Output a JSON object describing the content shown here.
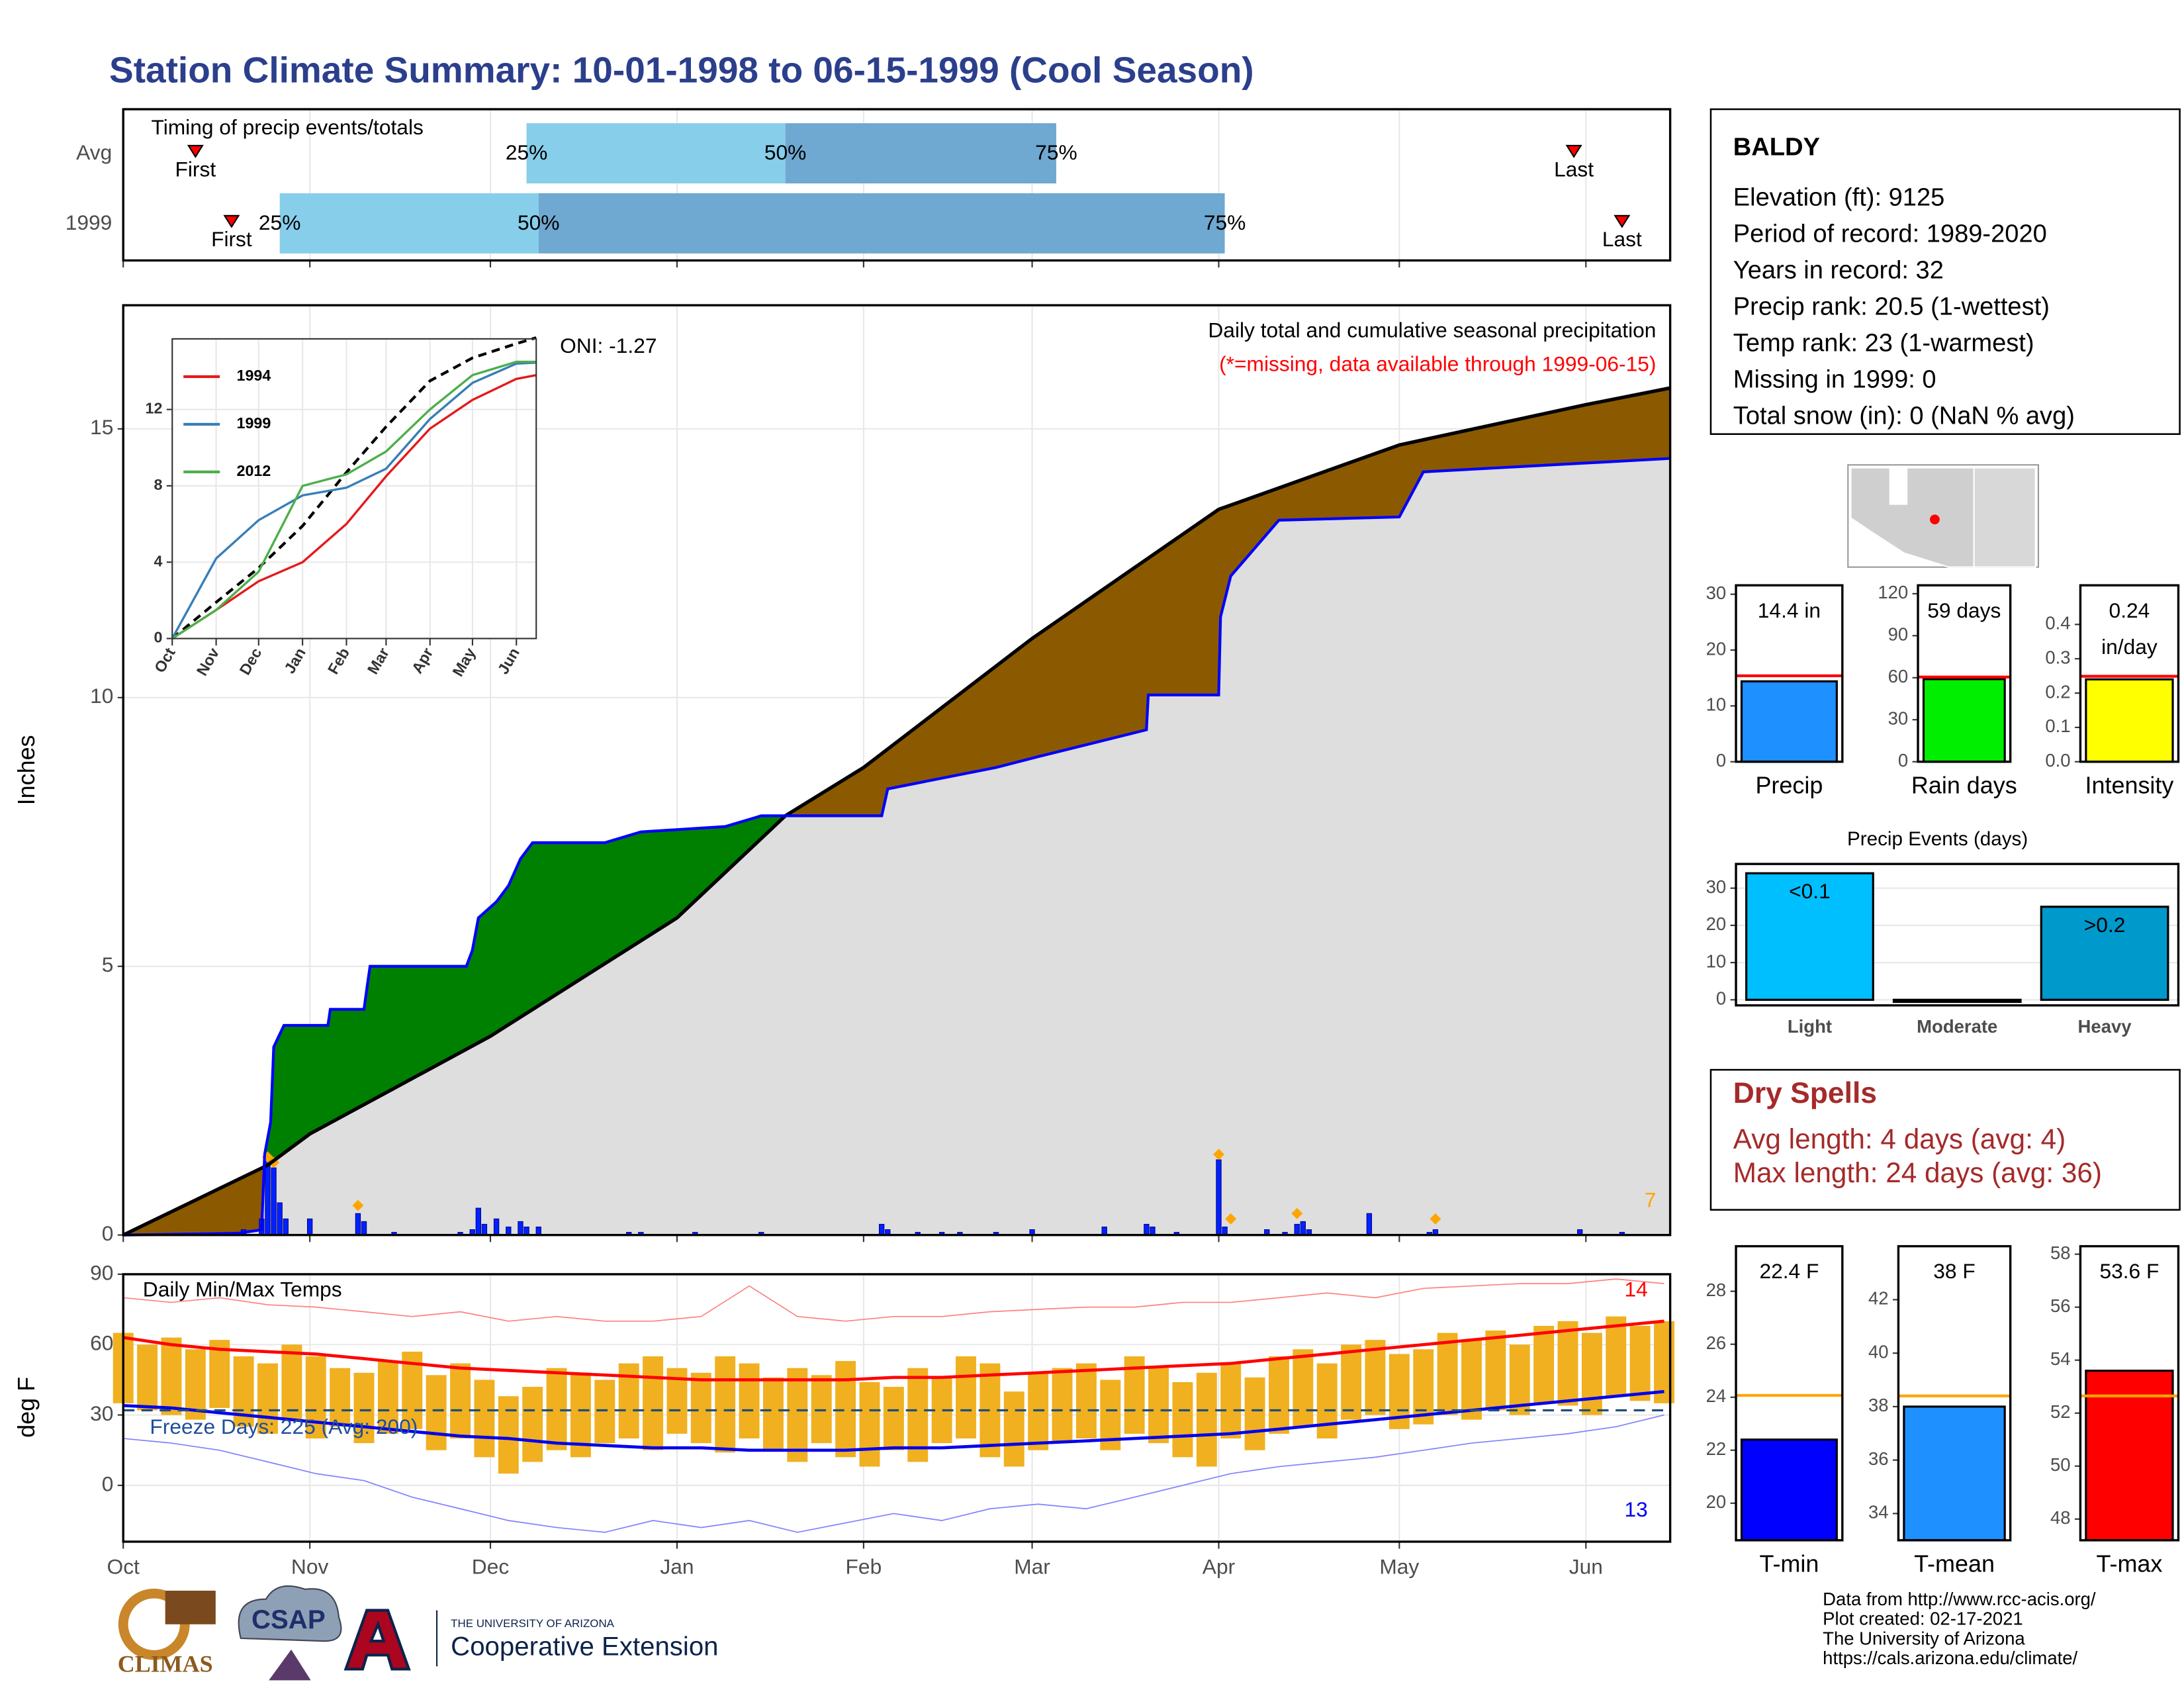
{
  "title": "Station Climate Summary: 10-01-1998 to 06-15-1999 (Cool Season)",
  "station": {
    "name": "BALDY",
    "lines": [
      "Elevation (ft): 9125",
      "Period of record: 1989-2020",
      "Years in record: 32",
      "Precip rank: 20.5 (1-wettest)",
      "Temp rank: 23 (1-warmest)",
      "Missing in 1999: 0",
      "Total snow (in): 0 (NaN % avg)"
    ]
  },
  "dry_spells": {
    "title": "Dry Spells",
    "lines": [
      "Avg length: 4 days (avg: 4)",
      "Max length: 24 days (avg: 36)"
    ]
  },
  "footer": [
    "Data from http://www.rcc-acis.org/",
    "Plot created: 02-17-2021",
    "The University of Arizona",
    "https://cals.arizona.edu/climate/"
  ],
  "logos": {
    "climas": "CLIMAS",
    "csap": "CSAP",
    "ua": "THE UNIVERSITY OF ARIZONA",
    "ce": "Cooperative Extension"
  },
  "chart_data": [
    {
      "type": "timing",
      "title": "Timing of precip events/totals",
      "xlim": [
        0,
        257
      ],
      "xticks": [
        0,
        31,
        61,
        92,
        123,
        151,
        182,
        212,
        243
      ],
      "grid": true,
      "marker_labels": [
        "First",
        "Last"
      ],
      "quantile_labels": [
        "25%",
        "50%",
        "75%"
      ],
      "colors": [
        "#87ceeb",
        "#6fa8d0"
      ],
      "marker_color": "#ff0000",
      "series": [
        {
          "name": "Avg",
          "first": 12,
          "q25": 67,
          "q50": 110,
          "q75": 155,
          "last": 241
        },
        {
          "name": "1999",
          "first": 18,
          "q25": 26,
          "q50": 69,
          "q75": 183,
          "last": 249
        }
      ]
    },
    {
      "type": "cumulative",
      "ylabel": "Inches",
      "xlim": [
        0,
        257
      ],
      "xticks": [
        0,
        31,
        61,
        92,
        123,
        151,
        182,
        212,
        243
      ],
      "ylim": [
        0,
        17.3
      ],
      "yticks": [
        0,
        5,
        10,
        15
      ],
      "grid": true,
      "annotations": {
        "title": "Daily total and cumulative seasonal precipitation",
        "note": "(*=missing, data available through 1999-06-15)",
        "oni": "ONI: -1.27",
        "count": 7
      },
      "above_color": "#008000",
      "below_color": "#8b5a00",
      "base_color": "#dedede",
      "avg_cumulative": {
        "color": "#000000",
        "x": [
          0,
          24,
          31,
          61,
          92,
          110,
          123,
          151,
          182,
          212,
          243,
          257
        ],
        "values": [
          0,
          1.3,
          1.88,
          3.7,
          5.9,
          7.8,
          8.7,
          11.1,
          13.5,
          14.7,
          15.45,
          15.76
        ]
      },
      "cumulative": {
        "color": "#0000ff",
        "x": [
          0,
          19,
          23,
          23.5,
          24.5,
          25,
          26.7,
          34,
          34.4,
          40,
          40.5,
          41,
          57,
          58,
          59,
          62,
          64,
          66,
          68,
          80,
          86,
          100,
          106,
          126,
          127,
          145,
          152,
          170,
          170.3,
          182,
          182.3,
          184,
          192,
          212,
          216,
          257
        ],
        "values": [
          0,
          0.03,
          0.1,
          1.5,
          2.1,
          3.5,
          3.9,
          3.9,
          4.2,
          4.2,
          4.6,
          5.0,
          5.0,
          5.3,
          5.9,
          6.2,
          6.5,
          7.0,
          7.3,
          7.3,
          7.5,
          7.6,
          7.8,
          7.8,
          8.3,
          8.7,
          8.9,
          9.4,
          10.05,
          10.05,
          11.5,
          12.26,
          13.3,
          13.36,
          14.2,
          14.45
        ]
      },
      "daily": {
        "color": "#0022ff",
        "x": [
          19,
          20,
          23,
          24,
          25,
          26,
          27,
          31,
          39,
          40,
          45,
          56,
          58,
          59,
          60,
          62,
          64,
          66,
          67,
          69,
          84,
          86,
          95,
          106,
          126,
          127,
          132,
          136,
          139,
          145,
          151,
          163,
          170,
          171,
          175,
          182,
          183,
          190,
          193,
          195,
          196,
          197,
          207,
          217,
          218,
          242,
          249
        ],
        "values": [
          0.05,
          0.1,
          0.3,
          1.4,
          1.25,
          0.6,
          0.3,
          0.3,
          0.4,
          0.25,
          0.05,
          0.05,
          0.1,
          0.5,
          0.2,
          0.3,
          0.15,
          0.25,
          0.15,
          0.15,
          0.05,
          0.05,
          0.05,
          0.05,
          0.2,
          0.1,
          0.05,
          0.05,
          0.05,
          0.05,
          0.1,
          0.15,
          0.2,
          0.15,
          0.05,
          1.4,
          0.15,
          0.1,
          0.05,
          0.2,
          0.25,
          0.1,
          0.4,
          0.05,
          0.1,
          0.1,
          0.05
        ]
      },
      "records": {
        "color": "#ffa500",
        "x": [
          24,
          25,
          39,
          182,
          184,
          195,
          218
        ],
        "values": [
          1.45,
          1.35,
          0.55,
          1.5,
          0.3,
          0.4,
          0.3
        ]
      }
    },
    {
      "type": "line",
      "xlim": [
        0,
        257
      ],
      "ylim": [
        0,
        15.7
      ],
      "xticks": [
        {
          "value": 0,
          "label": "Oct"
        },
        {
          "value": 31,
          "label": "Nov"
        },
        {
          "value": 61,
          "label": "Dec"
        },
        {
          "value": 92,
          "label": "Jan"
        },
        {
          "value": 123,
          "label": "Feb"
        },
        {
          "value": 151,
          "label": "Mar"
        },
        {
          "value": 182,
          "label": "Apr"
        },
        {
          "value": 212,
          "label": "May"
        },
        {
          "value": 243,
          "label": "Jun"
        }
      ],
      "yticks": [
        0,
        4,
        8,
        12
      ],
      "grid": true,
      "x": [
        0,
        31,
        61,
        92,
        123,
        151,
        182,
        212,
        243,
        257
      ],
      "series": [
        {
          "name": "1994",
          "color": "#e41a1c",
          "values": [
            0,
            1.5,
            3,
            4,
            6,
            8.5,
            11,
            12.5,
            13.6,
            13.8
          ]
        },
        {
          "name": "1999",
          "color": "#377eb8",
          "values": [
            0,
            4.2,
            6.2,
            7.5,
            7.9,
            8.9,
            11.5,
            13.4,
            14.4,
            14.45
          ]
        },
        {
          "name": "2012",
          "color": "#4daf4a",
          "values": [
            0,
            1.5,
            3.5,
            8,
            8.6,
            9.8,
            12,
            13.8,
            14.5,
            14.5
          ]
        }
      ],
      "average": {
        "color": "#000000",
        "values": [
          0,
          1.9,
          3.7,
          5.9,
          8.7,
          11.1,
          13.5,
          14.7,
          15.45,
          15.76
        ]
      }
    },
    {
      "type": "temperature",
      "title": "Daily Min/Max Temps",
      "annotation": "Freeze Days: 225 (Avg: 200)",
      "high_count": 14,
      "low_count": 13,
      "ylabel": "deg F",
      "xlim": [
        0,
        257
      ],
      "ylim": [
        -24,
        90
      ],
      "yticks": [
        0,
        30,
        60,
        90
      ],
      "grid": true,
      "freeze_line": 32,
      "xticks": [
        {
          "value": 0,
          "label": "Oct"
        },
        {
          "value": 31,
          "label": "Nov"
        },
        {
          "value": 61,
          "label": "Dec"
        },
        {
          "value": 92,
          "label": "Jan"
        },
        {
          "value": 123,
          "label": "Feb"
        },
        {
          "value": 151,
          "label": "Mar"
        },
        {
          "value": 182,
          "label": "Apr"
        },
        {
          "value": 212,
          "label": "May"
        },
        {
          "value": 243,
          "label": "Jun"
        }
      ],
      "daily": {
        "color": "#f0b020",
        "x": [
          0,
          4,
          8,
          12,
          16,
          20,
          24,
          28,
          32,
          36,
          40,
          44,
          48,
          52,
          56,
          60,
          64,
          68,
          72,
          76,
          80,
          84,
          88,
          92,
          96,
          100,
          104,
          108,
          112,
          116,
          120,
          124,
          128,
          132,
          136,
          140,
          144,
          148,
          152,
          156,
          160,
          164,
          168,
          172,
          176,
          180,
          184,
          188,
          192,
          196,
          200,
          204,
          208,
          212,
          216,
          220,
          224,
          228,
          232,
          236,
          240,
          244,
          248,
          252,
          256
        ],
        "max": [
          65,
          60,
          63,
          58,
          62,
          55,
          52,
          60,
          55,
          50,
          48,
          53,
          57,
          47,
          52,
          45,
          38,
          42,
          50,
          48,
          45,
          52,
          55,
          50,
          48,
          55,
          52,
          46,
          50,
          47,
          53,
          44,
          42,
          50,
          46,
          55,
          52,
          40,
          48,
          50,
          52,
          45,
          55,
          50,
          44,
          48,
          52,
          46,
          55,
          58,
          52,
          60,
          62,
          56,
          58,
          65,
          62,
          66,
          60,
          68,
          70,
          65,
          72,
          68,
          70
        ],
        "min": [
          35,
          32,
          30,
          28,
          33,
          25,
          22,
          28,
          20,
          25,
          18,
          22,
          24,
          15,
          20,
          12,
          5,
          10,
          15,
          12,
          18,
          20,
          15,
          22,
          18,
          14,
          20,
          15,
          10,
          18,
          12,
          8,
          15,
          10,
          18,
          20,
          12,
          8,
          15,
          18,
          20,
          15,
          22,
          18,
          12,
          8,
          20,
          15,
          22,
          25,
          20,
          28,
          30,
          24,
          26,
          30,
          28,
          32,
          30,
          35,
          34,
          30,
          38,
          36,
          35
        ]
      },
      "x_smooth": [
        0,
        8,
        16,
        24,
        32,
        40,
        48,
        56,
        64,
        72,
        80,
        88,
        96,
        104,
        112,
        120,
        128,
        136,
        144,
        152,
        160,
        168,
        176,
        184,
        192,
        200,
        208,
        216,
        224,
        232,
        240,
        248,
        256
      ],
      "avg_max": {
        "color": "#ff0000",
        "values": [
          63,
          60,
          58,
          57,
          56,
          54,
          52,
          50,
          49,
          48,
          47,
          46,
          45,
          45,
          45,
          45,
          46,
          46,
          47,
          48,
          49,
          50,
          51,
          52,
          54,
          56,
          58,
          60,
          62,
          64,
          66,
          68,
          70
        ]
      },
      "avg_min": {
        "color": "#0000ee",
        "values": [
          34,
          33,
          31,
          29,
          27,
          25,
          23,
          21,
          20,
          18,
          17,
          16,
          16,
          15,
          15,
          15,
          16,
          16,
          17,
          18,
          19,
          20,
          21,
          22,
          24,
          26,
          28,
          30,
          32,
          34,
          36,
          38,
          40
        ]
      },
      "record_high": {
        "color": "#ff8080",
        "values": [
          80,
          78,
          80,
          77,
          76,
          74,
          72,
          74,
          70,
          72,
          70,
          70,
          72,
          85,
          72,
          70,
          72,
          72,
          74,
          75,
          76,
          76,
          78,
          78,
          80,
          82,
          80,
          84,
          85,
          86,
          86,
          88,
          86
        ]
      },
      "record_low": {
        "color": "#8080ff",
        "values": [
          20,
          18,
          15,
          10,
          5,
          2,
          -5,
          -10,
          -15,
          -18,
          -20,
          -15,
          -18,
          -15,
          -20,
          -16,
          -12,
          -15,
          -10,
          -8,
          -10,
          -5,
          0,
          5,
          8,
          10,
          12,
          15,
          18,
          20,
          22,
          25,
          30
        ]
      }
    },
    {
      "type": "summary_bar",
      "label": "Precip",
      "value": 14.4,
      "value_label": [
        "14.4 in"
      ],
      "average": 15.4,
      "ylim": [
        0,
        31.6
      ],
      "yticks": [
        0,
        10,
        20,
        30
      ],
      "color": "#1e90ff",
      "average_color": "#ff0000"
    },
    {
      "type": "summary_bar",
      "label": "Rain days",
      "value": 59,
      "value_label": [
        "59 days"
      ],
      "average": 60.5,
      "ylim": [
        0,
        126
      ],
      "yticks": [
        0,
        30,
        60,
        90,
        120
      ],
      "color": "#00ee00",
      "average_color": "#ff0000"
    },
    {
      "type": "summary_bar",
      "label": "Intensity",
      "value": 0.24,
      "value_label": [
        "0.24",
        "in/day"
      ],
      "average": 0.249,
      "ylim": [
        0,
        0.514
      ],
      "yticks": [
        {
          "value": 0,
          "label": "0.0"
        },
        0.1,
        0.2,
        0.3,
        0.4
      ],
      "color": "#ffff00",
      "average_color": "#ff0000"
    },
    {
      "type": "bar",
      "title": "Precip Events (days)",
      "categories": [
        "Light",
        "Moderate",
        "Heavy"
      ],
      "values": [
        34,
        0,
        25
      ],
      "bin_labels": [
        "<0.1",
        null,
        ">0.2"
      ],
      "colors": [
        "#00bfff",
        "#00bfff",
        "#0099cc"
      ],
      "ylim": [
        -1.5,
        36.5
      ],
      "yticks": [
        0,
        10,
        20,
        30
      ],
      "grid": true
    },
    {
      "type": "summary_bar",
      "label": "T-min",
      "value": 22.4,
      "value_label": [
        "22.4 F"
      ],
      "average": 24.07,
      "ylim": [
        18.6,
        29.7
      ],
      "yticks": [
        20,
        22,
        24,
        26,
        28
      ],
      "color": "#0000ff",
      "average_color": "#ffa500"
    },
    {
      "type": "summary_bar",
      "label": "T-mean",
      "value": 38,
      "value_label": [
        "38 F"
      ],
      "average": 38.4,
      "ylim": [
        33,
        44
      ],
      "yticks": [
        34,
        36,
        38,
        40,
        42
      ],
      "color": "#1e90ff",
      "average_color": "#ffa500"
    },
    {
      "type": "summary_bar",
      "label": "T-max",
      "value": 53.6,
      "value_label": [
        "53.6 F"
      ],
      "average": 52.65,
      "ylim": [
        47.2,
        58.3
      ],
      "yticks": [
        48,
        50,
        52,
        54,
        56,
        58
      ],
      "color": "#ff0000",
      "average_color": "#ffa500"
    }
  ]
}
